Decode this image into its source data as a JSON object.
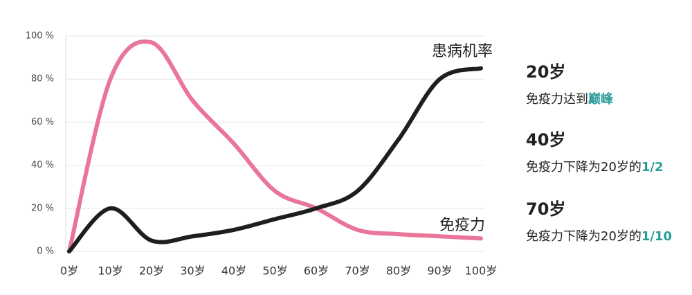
{
  "chart_data": {
    "type": "line",
    "categories": [
      "0岁",
      "10岁",
      "20岁",
      "30岁",
      "40岁",
      "50岁",
      "60岁",
      "70岁",
      "80岁",
      "90岁",
      "100岁"
    ],
    "series": [
      {
        "name": "免疫力",
        "color": "#e97598",
        "values": [
          0,
          80,
          97,
          70,
          50,
          28,
          20,
          10,
          8,
          7,
          6
        ]
      },
      {
        "name": "患病机率",
        "color": "#1e1e1e",
        "values": [
          0,
          20,
          5,
          7,
          10,
          15,
          20,
          28,
          52,
          80,
          85
        ]
      }
    ],
    "ylim": [
      0,
      100
    ],
    "yticks": [
      {
        "value": 0,
        "label": "0 %"
      },
      {
        "value": 20,
        "label": "20 %"
      },
      {
        "value": 40,
        "label": "40 %"
      },
      {
        "value": 60,
        "label": "60 %"
      },
      {
        "value": 80,
        "label": "80 %"
      },
      {
        "value": 100,
        "label": "100 %"
      }
    ],
    "grid": true
  },
  "annotations": [
    {
      "heading": "20岁",
      "text": "免疫力达到",
      "highlight": "巅峰"
    },
    {
      "heading": "40岁",
      "text": "免疫力下降为20岁的",
      "highlight": "1/2"
    },
    {
      "heading": "70岁",
      "text": "免疫力下降为20岁的",
      "highlight": "1/10"
    }
  ]
}
